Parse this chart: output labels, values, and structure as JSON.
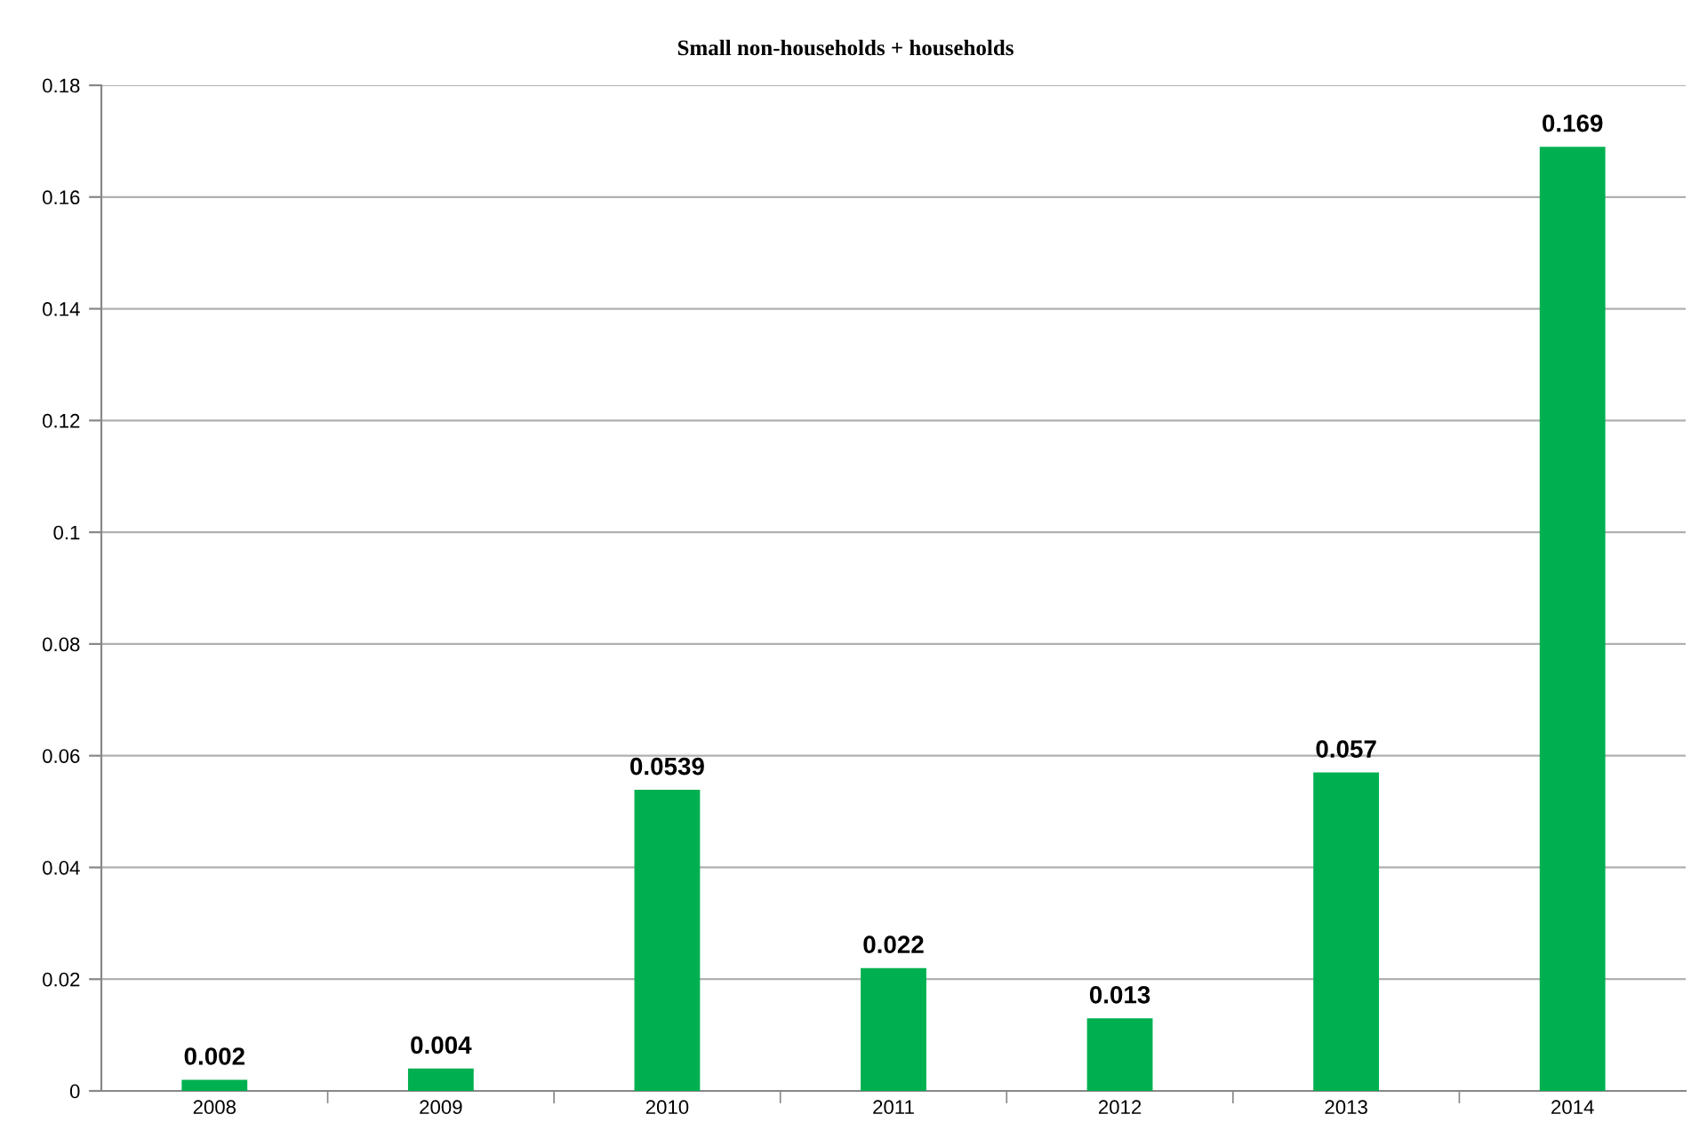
{
  "chart_data": {
    "type": "bar",
    "title": "Small non-households + households",
    "categories": [
      "2008",
      "2009",
      "2010",
      "2011",
      "2012",
      "2013",
      "2014"
    ],
    "values": [
      0.002,
      0.004,
      0.0539,
      0.022,
      0.013,
      0.057,
      0.169
    ],
    "color": "#00b050",
    "ylim": [
      0,
      0.18
    ],
    "yticks": [
      0,
      0.02,
      0.04,
      0.06,
      0.08,
      0.1,
      0.12,
      0.14,
      0.16,
      0.18
    ],
    "grid": "y",
    "data_labels": true,
    "legend": false
  }
}
